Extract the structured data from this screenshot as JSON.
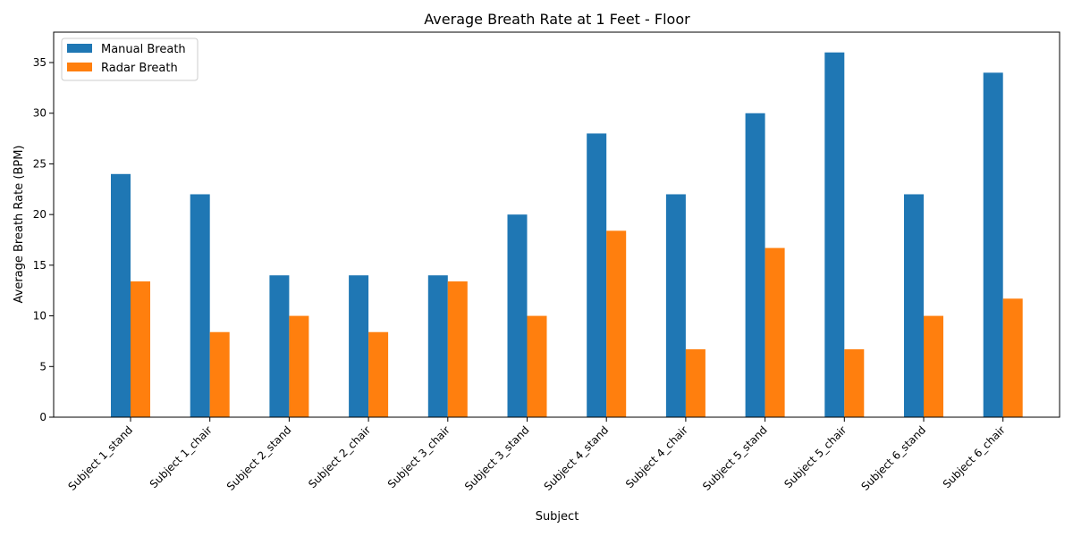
{
  "chart_data": {
    "type": "bar",
    "title": "Average Breath Rate at 1 Feet - Floor",
    "xlabel": "Subject",
    "ylabel": "Average Breath Rate (BPM)",
    "ylim": [
      0,
      38
    ],
    "yticks": [
      0,
      5,
      10,
      15,
      20,
      25,
      30,
      35
    ],
    "categories": [
      "Subject 1_stand",
      "Subject 1_chair",
      "Subject 2_stand",
      "Subject 2_chair",
      "Subject 3_chair",
      "Subject 3_stand",
      "Subject 4_stand",
      "Subject 4_chair",
      "Subject 5_stand",
      "Subject 5_chair",
      "Subject 6_stand",
      "Subject 6_chair"
    ],
    "series": [
      {
        "name": "Manual Breath",
        "color": "#1f77b4",
        "values": [
          24,
          22,
          14,
          14,
          14,
          20,
          28,
          22,
          30,
          36,
          22,
          34
        ]
      },
      {
        "name": "Radar Breath",
        "color": "#ff7f0e",
        "values": [
          13.4,
          8.4,
          10,
          8.4,
          13.4,
          10,
          18.4,
          6.7,
          16.7,
          6.7,
          10,
          11.7
        ]
      }
    ],
    "legend_position": "top-left",
    "grid": false
  }
}
